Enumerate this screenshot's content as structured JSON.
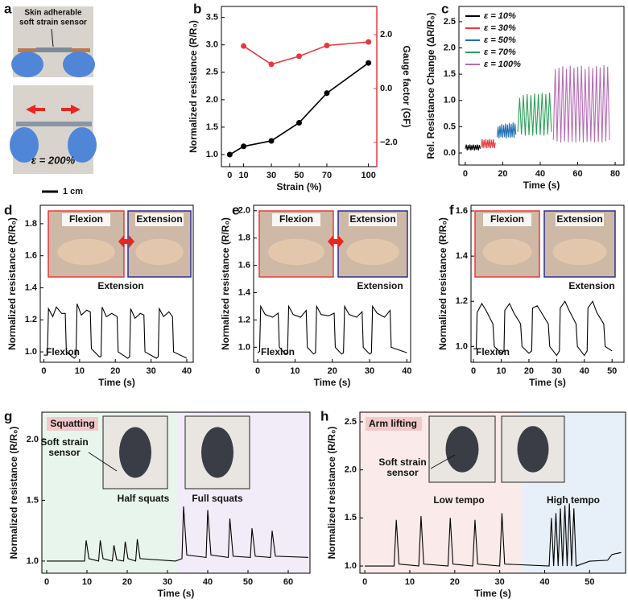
{
  "photo_panel": {
    "panel": "a",
    "sensor_label": [
      "Skin adherable",
      "soft strain sensor"
    ],
    "strain_label": "ε = 200%",
    "scale_bar": "1 cm"
  },
  "chart_data": [
    {
      "panel": "b",
      "type": "line",
      "markers": true,
      "x_label": "Strain (%)",
      "y_label": "Normalized resistance (R/R₀)",
      "y2_label": "Gauge factor (GF)",
      "y2_color": "#e8383d",
      "xlim": [
        -6,
        106
      ],
      "xticks": [
        0,
        10,
        30,
        50,
        70,
        100
      ],
      "ylim": [
        0.78,
        3.7
      ],
      "yticks": [
        {
          "value": 1,
          "label": "1.0"
        },
        1.5,
        {
          "value": 2,
          "label": "2.0"
        },
        2.5,
        {
          "value": 3,
          "label": "3.0"
        },
        3.5
      ],
      "y2lim": [
        -2.9,
        3.05
      ],
      "y2ticks": [
        {
          "value": -2,
          "label": "−2.0"
        },
        {
          "value": 0,
          "label": "0.0"
        },
        {
          "value": 2,
          "label": "2.0"
        }
      ],
      "series": [
        {
          "color": "#000000",
          "x": [
            0,
            10,
            30,
            50,
            70,
            100
          ],
          "values": [
            1.0,
            1.15,
            1.25,
            1.58,
            2.12,
            2.67
          ]
        },
        {
          "color": "#e8383d",
          "axis": "y2",
          "x": [
            10,
            30,
            50,
            70,
            100
          ],
          "values": [
            1.58,
            0.9,
            1.2,
            1.6,
            1.73
          ]
        }
      ]
    },
    {
      "panel": "c",
      "type": "line",
      "legend": true,
      "x_label": "Time (s)",
      "y_label": "Rel. Resistance Change (ΔR/R₀)",
      "xlim": [
        -3.4,
        84.7
      ],
      "xticks": [
        0,
        20,
        40,
        60,
        80
      ],
      "ylim": [
        -0.23,
        2.79
      ],
      "yticks": [
        {
          "value": 0,
          "label": "0.0"
        },
        0.5,
        {
          "value": 1,
          "label": "1.0"
        },
        1.5,
        {
          "value": 2,
          "label": "2.0"
        },
        2.5
      ],
      "series": [
        {
          "name": "ε = 10%",
          "color": "#000000",
          "x": [
            0,
            0.5,
            1,
            1.5,
            2,
            2.5,
            3,
            3.5,
            4,
            4.5,
            5,
            5.5,
            6,
            6.5,
            7,
            7.5,
            8
          ],
          "values": [
            0.08,
            0.16,
            0.05,
            0.15,
            0.06,
            0.16,
            0.05,
            0.15,
            0.06,
            0.16,
            0.05,
            0.15,
            0.06,
            0.16,
            0.05,
            0.15,
            0.08
          ]
        },
        {
          "name": "ε = 30%",
          "color": "#e8383d",
          "x": [
            8.5,
            9,
            9.5,
            10,
            10.5,
            11,
            11.5,
            12,
            12.5,
            13,
            13.5,
            14,
            14.5,
            15,
            15.5,
            16
          ],
          "values": [
            0.1,
            0.26,
            0.09,
            0.25,
            0.1,
            0.26,
            0.09,
            0.25,
            0.1,
            0.27,
            0.09,
            0.25,
            0.1,
            0.26,
            0.09,
            0.2
          ]
        },
        {
          "name": "ε = 50%",
          "color": "#1f6fb3",
          "x": [
            17,
            17.5,
            18,
            18.5,
            19,
            19.5,
            20,
            20.5,
            21,
            21.5,
            22,
            22.5,
            23,
            23.5,
            24,
            24.5,
            25,
            25.5,
            26,
            26.5,
            27
          ],
          "values": [
            0.3,
            0.5,
            0.28,
            0.52,
            0.3,
            0.55,
            0.29,
            0.53,
            0.3,
            0.56,
            0.28,
            0.54,
            0.3,
            0.57,
            0.29,
            0.55,
            0.3,
            0.58,
            0.29,
            0.56,
            0.35
          ]
        },
        {
          "name": "ε = 70%",
          "color": "#2ca05a",
          "x": [
            28,
            29,
            30,
            31,
            32,
            33,
            34,
            35,
            36,
            37,
            38,
            39,
            40,
            41,
            42,
            43,
            44,
            45,
            46
          ],
          "values": [
            0.4,
            1.05,
            0.35,
            1.1,
            0.33,
            1.12,
            0.34,
            1.1,
            0.33,
            1.13,
            0.35,
            1.12,
            0.34,
            1.14,
            0.33,
            1.12,
            0.35,
            1.15,
            0.4
          ]
        },
        {
          "name": "ε = 100%",
          "color": "#b46bb4",
          "x": [
            47,
            48,
            49,
            50,
            51,
            52,
            53,
            54,
            55,
            56,
            57,
            58,
            59,
            60,
            61,
            62,
            63,
            64,
            65,
            66,
            67,
            68,
            69,
            70,
            71,
            72,
            73,
            74,
            75,
            76,
            77
          ],
          "values": [
            0.25,
            1.6,
            0.22,
            1.62,
            0.2,
            1.65,
            0.22,
            1.6,
            0.2,
            1.66,
            0.21,
            1.62,
            0.2,
            1.64,
            0.22,
            1.66,
            0.2,
            1.6,
            0.21,
            1.65,
            0.22,
            1.62,
            0.2,
            1.66,
            0.21,
            1.63,
            0.2,
            1.67,
            0.22,
            1.64,
            0.25
          ]
        }
      ]
    },
    {
      "panel": "d",
      "type": "line",
      "x_label": "Time (s)",
      "y_label": "Normalized resistance (R/R₀)",
      "xlim": [
        -1,
        41.8
      ],
      "xticks": [
        0,
        10,
        20,
        30,
        40
      ],
      "ylim": [
        0.935,
        1.915
      ],
      "yticks": [
        {
          "value": 1,
          "label": "1.0"
        },
        1.2,
        1.4,
        1.6,
        1.8
      ],
      "insets": [
        {
          "text": "Flexion",
          "color": "#e8383d"
        },
        {
          "text": "Extension",
          "color": "#2b2f8f"
        }
      ],
      "annotations": [
        {
          "text": "Extension",
          "color": "#1f2a99"
        },
        {
          "text": "Flexion",
          "color": "#e8383d"
        }
      ],
      "series": [
        {
          "color": "#000000",
          "x": [
            0,
            1,
            1.3,
            2.5,
            3.5,
            5,
            6,
            6.3,
            8.5,
            9,
            9.3,
            10.5,
            12,
            13,
            13.3,
            15.5,
            16,
            16.3,
            17.5,
            19,
            20.5,
            20.8,
            23.5,
            24,
            24.3,
            25.5,
            27,
            28,
            28.3,
            31.5,
            32,
            32.3,
            33.5,
            35,
            36,
            36.3,
            40
          ],
          "values": [
            0.98,
            0.98,
            1.27,
            1.22,
            1.28,
            1.24,
            1.24,
            1.0,
            0.96,
            0.97,
            1.3,
            1.23,
            1.26,
            1.25,
            1.02,
            0.97,
            0.97,
            1.28,
            1.22,
            1.24,
            1.22,
            1.0,
            0.96,
            0.97,
            1.27,
            1.21,
            1.24,
            1.23,
            1.0,
            0.96,
            0.97,
            1.27,
            1.22,
            1.25,
            1.22,
            1.0,
            0.96
          ]
        }
      ]
    },
    {
      "panel": "e",
      "type": "line",
      "x_label": "Time (s)",
      "y_label": "Normalized resistance (R/R₀)",
      "xlim": [
        -1.1,
        41
      ],
      "xticks": [
        0,
        10,
        20,
        30,
        40
      ],
      "ylim": [
        0.89,
        2.04
      ],
      "yticks": [
        {
          "value": 1,
          "label": "1.0"
        },
        1.2,
        1.4,
        1.6,
        1.8,
        {
          "value": 2,
          "label": "2.0"
        }
      ],
      "insets": [
        {
          "text": "Flexion",
          "color": "#e8383d"
        },
        {
          "text": "Extension",
          "color": "#2b2f8f"
        }
      ],
      "annotations": [
        {
          "text": "Extension",
          "color": "#1f2a99"
        },
        {
          "text": "Flexion",
          "color": "#e8383d"
        }
      ],
      "series": [
        {
          "color": "#000000",
          "x": [
            0,
            0.5,
            0.8,
            2,
            4,
            5.5,
            5.8,
            7.5,
            8,
            8.3,
            9.5,
            11.5,
            13,
            13.3,
            15,
            15.5,
            15.8,
            17,
            19,
            20.5,
            20.8,
            22.5,
            23,
            23.3,
            24.5,
            26.5,
            28,
            28.3,
            30,
            30.5,
            30.8,
            32,
            34,
            35.5,
            35.8,
            40
          ],
          "values": [
            0.96,
            0.97,
            1.3,
            1.24,
            1.22,
            1.25,
            1.0,
            0.95,
            0.96,
            1.3,
            1.24,
            1.22,
            1.27,
            1.0,
            0.95,
            0.96,
            1.3,
            1.24,
            1.23,
            1.25,
            1.0,
            0.95,
            0.96,
            1.3,
            1.24,
            1.22,
            1.26,
            1.0,
            0.95,
            0.96,
            1.3,
            1.25,
            1.22,
            1.27,
            1.0,
            0.96
          ]
        }
      ]
    },
    {
      "panel": "f",
      "type": "line",
      "x_label": "Time (s)",
      "y_label": "Normalized resistance (R/R₀)",
      "xlim": [
        -0.9,
        54.3
      ],
      "xticks": [
        0,
        10,
        20,
        30,
        40,
        50
      ],
      "ylim": [
        0.93,
        1.625
      ],
      "yticks": [
        {
          "value": 1,
          "label": "1.0"
        },
        1.2,
        1.4,
        1.6
      ],
      "insets": [
        {
          "text": "Flexion",
          "color": "#e8383d"
        },
        {
          "text": "Extension",
          "color": "#2b2f8f"
        }
      ],
      "annotations": [
        {
          "text": "Extension",
          "color": "#1f2a99"
        },
        {
          "text": "Flexion",
          "color": "#e8383d"
        }
      ],
      "series": [
        {
          "color": "#000000",
          "x": [
            0,
            1,
            1.3,
            3,
            4.5,
            7,
            7.5,
            10,
            11,
            11.3,
            13,
            14.5,
            17,
            17.5,
            20,
            21,
            21.3,
            23,
            24.5,
            27,
            27.5,
            30,
            31,
            31.3,
            33,
            34.5,
            37,
            37.5,
            40,
            41,
            41.3,
            43,
            44.5,
            47,
            47.5,
            50
          ],
          "values": [
            0.99,
            0.99,
            1.15,
            1.19,
            1.16,
            1.1,
            1.0,
            0.97,
            0.98,
            1.16,
            1.19,
            1.15,
            1.1,
            1.0,
            0.97,
            0.98,
            1.17,
            1.18,
            1.15,
            1.1,
            1.0,
            0.96,
            0.98,
            1.17,
            1.2,
            1.16,
            1.1,
            1.0,
            0.96,
            0.98,
            1.17,
            1.2,
            1.15,
            1.1,
            1.0,
            0.98
          ]
        }
      ]
    },
    {
      "panel": "g",
      "type": "line",
      "x_label": "Time (s)",
      "y_label": "Normalized resistance (R/R₀)",
      "xlim": [
        -1.2,
        65.4
      ],
      "xticks": [
        0,
        10,
        20,
        30,
        40,
        50,
        60
      ],
      "ylim": [
        0.9,
        2.225
      ],
      "yticks": [
        {
          "value": 1,
          "label": "1.0"
        },
        1.5,
        {
          "value": 2,
          "label": "2.0"
        }
      ],
      "regions": [
        {
          "from": -1.2,
          "to": 32.5,
          "color": "#e8f5ec"
        },
        {
          "from": 32.5,
          "to": 65.4,
          "color": "#f1ecf7"
        }
      ],
      "annotations": [
        {
          "text": "Squatting",
          "color": "#111111"
        },
        {
          "text": "Soft strain",
          "color": "#111111"
        },
        {
          "text": "sensor",
          "color": "#111111"
        },
        {
          "text": "Half squats",
          "color": "#2ca05a"
        },
        {
          "text": "Full squats",
          "color": "#6b3f8f"
        }
      ],
      "series": [
        {
          "color": "#000000",
          "x": [
            0,
            9.4,
            9.8,
            10.5,
            12.9,
            13.3,
            14,
            16.3,
            16.7,
            17.4,
            19.1,
            19.5,
            20.2,
            22.1,
            22.5,
            23.2,
            32,
            33.6,
            34,
            34.8,
            39.6,
            40,
            40.8,
            45.1,
            45.5,
            46.3,
            50.6,
            51,
            51.8,
            55.6,
            56,
            56.8,
            65
          ],
          "values": [
            1.0,
            1.0,
            1.17,
            1.02,
            1.0,
            1.17,
            1.02,
            1.0,
            1.13,
            1.01,
            1.0,
            1.16,
            1.02,
            1.0,
            1.18,
            1.02,
            1.0,
            1.02,
            1.45,
            1.05,
            1.03,
            1.42,
            1.05,
            1.03,
            1.35,
            1.04,
            1.03,
            1.27,
            1.04,
            1.03,
            1.25,
            1.04,
            1.03
          ]
        }
      ]
    },
    {
      "panel": "h",
      "type": "line",
      "x_label": "Time (s)",
      "y_label": "Normalized resistance (R/R₀)",
      "xlim": [
        -1.1,
        58
      ],
      "xticks": [
        0,
        10,
        20,
        30,
        40,
        50
      ],
      "ylim": [
        0.925,
        2.6
      ],
      "yticks": [
        {
          "value": 1,
          "label": "1.0"
        },
        1.5,
        {
          "value": 2,
          "label": "2.0"
        },
        2.5
      ],
      "regions": [
        {
          "from": -1.1,
          "to": 35,
          "color": "#fbeaea"
        },
        {
          "from": 35,
          "to": 58,
          "color": "#e7eff8"
        }
      ],
      "annotations": [
        {
          "text": "Arm lifting",
          "color": "#111111"
        },
        {
          "text": "Soft strain",
          "color": "#111111"
        },
        {
          "text": "sensor",
          "color": "#111111"
        },
        {
          "text": "Low tempo",
          "color": "#e8383d"
        },
        {
          "text": "High tempo",
          "color": "#2f72b0"
        }
      ],
      "series": [
        {
          "color": "#000000",
          "x": [
            0,
            6.5,
            7,
            7.6,
            12,
            12.5,
            13.1,
            18.5,
            19,
            19.6,
            24,
            24.5,
            25.1,
            30,
            30.5,
            31.1,
            41,
            41.5,
            42,
            42.5,
            43,
            43.5,
            44,
            44.5,
            45,
            45.5,
            46,
            46.5,
            47,
            50,
            54,
            55,
            57
          ],
          "values": [
            1.0,
            1.0,
            1.48,
            1.02,
            1.0,
            1.52,
            1.02,
            1.0,
            1.5,
            1.02,
            1.0,
            1.48,
            1.02,
            1.0,
            1.55,
            1.02,
            1.0,
            1.5,
            1.0,
            1.55,
            1.0,
            1.6,
            1.0,
            1.63,
            1.0,
            1.65,
            1.0,
            1.6,
            1.0,
            1.05,
            1.06,
            1.12,
            1.14
          ]
        }
      ]
    }
  ]
}
